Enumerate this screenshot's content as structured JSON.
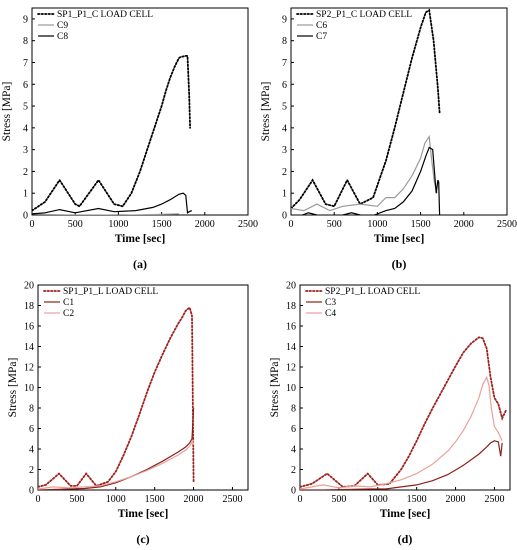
{
  "chart_data": [
    {
      "panel": "(a)",
      "type": "line",
      "xlabel": "Time [sec]",
      "ylabel": "Stress [MPa]",
      "xlim": [
        0,
        2500
      ],
      "ylim": [
        0,
        9.5
      ],
      "xticks": [
        0,
        500,
        1000,
        1500,
        2000,
        2500
      ],
      "yticks": [
        0,
        1,
        2,
        3,
        4,
        5,
        6,
        7,
        8,
        9
      ],
      "legend_position": "top-left",
      "series": [
        {
          "name": "SP1_P1_C LOAD CELL",
          "color": "#000000",
          "style": "dotted",
          "x": [
            0,
            150,
            320,
            500,
            550,
            770,
            950,
            1050,
            1150,
            1250,
            1350,
            1450,
            1500,
            1550,
            1600,
            1650,
            1700,
            1720,
            1780,
            1800,
            1820,
            1830
          ],
          "y": [
            0.2,
            0.6,
            1.6,
            0.5,
            0.4,
            1.6,
            0.5,
            0.4,
            1.0,
            2.0,
            3.2,
            4.4,
            5.0,
            5.7,
            6.3,
            6.8,
            7.2,
            7.25,
            7.3,
            7.3,
            5.5,
            4.0
          ]
        },
        {
          "name": "C9",
          "color": "#9a9a9a",
          "style": "solid",
          "x": [
            0,
            200,
            400,
            800,
            1000,
            1200,
            1500,
            1700
          ],
          "y": [
            0.05,
            0.02,
            0.0,
            0.0,
            -0.02,
            0.0,
            0.03,
            0.05
          ]
        },
        {
          "name": "C8",
          "color": "#000000",
          "style": "solid",
          "x": [
            0,
            150,
            320,
            500,
            770,
            950,
            1200,
            1400,
            1500,
            1600,
            1700,
            1750,
            1780,
            1800,
            1820,
            1850
          ],
          "y": [
            0.05,
            0.1,
            0.25,
            0.1,
            0.3,
            0.15,
            0.2,
            0.35,
            0.5,
            0.7,
            0.95,
            1.0,
            0.9,
            0.1,
            0.15,
            0.2
          ]
        }
      ]
    },
    {
      "panel": "(b)",
      "type": "line",
      "xlabel": "Time [sec]",
      "ylabel": "Stress [MPa]",
      "xlim": [
        0,
        2500
      ],
      "ylim": [
        0,
        9.5
      ],
      "xticks": [
        0,
        500,
        1000,
        1500,
        2000,
        2500
      ],
      "yticks": [
        0,
        1,
        2,
        3,
        4,
        5,
        6,
        7,
        8,
        9
      ],
      "legend_position": "top-left",
      "series": [
        {
          "name": "SP2_P1_C LOAD CELL",
          "color": "#000000",
          "style": "dotted",
          "x": [
            0,
            100,
            250,
            400,
            500,
            650,
            800,
            950,
            1100,
            1200,
            1300,
            1400,
            1500,
            1560,
            1600,
            1650,
            1700,
            1720
          ],
          "y": [
            0.3,
            0.7,
            1.6,
            0.5,
            0.4,
            1.6,
            0.5,
            0.8,
            2.5,
            4.0,
            5.6,
            7.2,
            8.6,
            9.3,
            9.4,
            8.0,
            5.8,
            4.7
          ]
        },
        {
          "name": "C6",
          "color": "#9a9a9a",
          "style": "solid",
          "x": [
            0,
            150,
            300,
            450,
            600,
            800,
            1000,
            1100,
            1200,
            1300,
            1400,
            1500,
            1550,
            1600,
            1620,
            1660,
            1690
          ],
          "y": [
            0.3,
            0.2,
            0.5,
            0.2,
            0.4,
            0.5,
            0.4,
            0.8,
            0.8,
            1.2,
            1.8,
            2.6,
            3.3,
            3.6,
            2.8,
            1.5,
            1.0
          ]
        },
        {
          "name": "C7",
          "color": "#000000",
          "style": "solid",
          "x": [
            0,
            200,
            300,
            450,
            600,
            700,
            900,
            1100,
            1200,
            1300,
            1400,
            1500,
            1560,
            1600,
            1640,
            1680,
            1700,
            1710,
            1720
          ],
          "y": [
            -0.2,
            0.1,
            0.0,
            -0.1,
            0.0,
            0.1,
            -0.1,
            0.2,
            0.3,
            0.6,
            1.1,
            2.0,
            2.7,
            3.1,
            3.0,
            1.0,
            1.6,
            1.5,
            0.0
          ]
        }
      ]
    },
    {
      "panel": "(c)",
      "type": "line",
      "xlabel": "Time [sec]",
      "ylabel": "Stress [MPa]",
      "xlim": [
        0,
        2700
      ],
      "ylim": [
        0,
        20
      ],
      "xticks": [
        0,
        500,
        1000,
        1500,
        2000,
        2500
      ],
      "yticks": [
        0,
        2,
        4,
        6,
        8,
        10,
        12,
        14,
        16,
        18,
        20
      ],
      "legend_position": "top-left",
      "series": [
        {
          "name": "SP1_P1_L LOAD CELL",
          "color": "#a0201b",
          "style": "dotted",
          "x": [
            0,
            100,
            270,
            420,
            500,
            620,
            750,
            900,
            1000,
            1100,
            1200,
            1300,
            1400,
            1500,
            1600,
            1700,
            1750,
            1800,
            1850,
            1900,
            1950,
            1980,
            2000
          ],
          "y": [
            0.3,
            0.5,
            1.6,
            0.4,
            0.4,
            1.6,
            0.4,
            0.8,
            1.8,
            3.4,
            5.2,
            7.3,
            9.5,
            11.5,
            13.2,
            14.8,
            15.5,
            16.2,
            16.8,
            17.5,
            17.8,
            17.0,
            0.8
          ]
        },
        {
          "name": "C1",
          "color": "#8b2218",
          "style": "solid",
          "x": [
            0,
            200,
            400,
            600,
            800,
            1000,
            1200,
            1400,
            1600,
            1800,
            1900,
            1950,
            1980,
            1990,
            2000
          ],
          "y": [
            0.0,
            0.05,
            0.1,
            0.15,
            0.3,
            0.7,
            1.3,
            2.0,
            2.8,
            3.7,
            4.2,
            4.6,
            5.0,
            6.5,
            8.0
          ]
        },
        {
          "name": "C2",
          "color": "#e8a19b",
          "style": "solid",
          "x": [
            0,
            200,
            400,
            600,
            800,
            1000,
            1200,
            1400,
            1600,
            1800,
            1900,
            1950,
            1990,
            2000
          ],
          "y": [
            0.1,
            0.3,
            0.2,
            0.3,
            0.4,
            0.8,
            1.3,
            1.9,
            2.6,
            3.4,
            3.9,
            4.3,
            4.8,
            4.4
          ]
        }
      ]
    },
    {
      "panel": "(d)",
      "type": "line",
      "xlabel": "Time [sec]",
      "ylabel": "Stress [MPa]",
      "xlim": [
        0,
        2700
      ],
      "ylim": [
        0,
        20
      ],
      "xticks": [
        0,
        500,
        1000,
        1500,
        2000,
        2500
      ],
      "yticks": [
        0,
        2,
        4,
        6,
        8,
        10,
        12,
        14,
        16,
        18,
        20
      ],
      "legend_position": "top-left",
      "series": [
        {
          "name": "SP2_P1_L LOAD CELL",
          "color": "#a0201b",
          "style": "dotted",
          "x": [
            0,
            150,
            350,
            550,
            700,
            870,
            1000,
            1150,
            1300,
            1400,
            1500,
            1600,
            1700,
            1800,
            1900,
            2000,
            2100,
            2200,
            2300,
            2350,
            2400,
            2450,
            2500,
            2550,
            2600,
            2650
          ],
          "y": [
            0.3,
            0.6,
            1.6,
            0.3,
            0.4,
            1.6,
            0.5,
            0.6,
            2.0,
            3.3,
            4.8,
            6.4,
            7.9,
            9.3,
            10.7,
            12.1,
            13.4,
            14.3,
            14.9,
            14.8,
            13.8,
            11.0,
            9.0,
            8.4,
            7.0,
            7.8
          ]
        },
        {
          "name": "C3",
          "color": "#8b2218",
          "style": "solid",
          "x": [
            0,
            300,
            600,
            900,
            1100,
            1300,
            1500,
            1700,
            1900,
            2100,
            2300,
            2400,
            2450,
            2500,
            2550,
            2580,
            2600
          ],
          "y": [
            0.0,
            0.0,
            0.05,
            0.1,
            0.1,
            0.3,
            0.5,
            0.9,
            1.5,
            2.4,
            3.5,
            4.2,
            4.6,
            4.8,
            4.7,
            3.3,
            4.6
          ]
        },
        {
          "name": "C4",
          "color": "#e8a19b",
          "style": "solid",
          "x": [
            0,
            300,
            500,
            700,
            900,
            1100,
            1300,
            1500,
            1700,
            1900,
            2000,
            2100,
            2200,
            2300,
            2350,
            2400,
            2430,
            2460,
            2500,
            2550,
            2600
          ],
          "y": [
            0.1,
            0.5,
            0.2,
            0.4,
            0.3,
            0.6,
            1.0,
            1.6,
            2.5,
            3.8,
            4.7,
            5.8,
            7.2,
            9.0,
            10.3,
            11.0,
            10.2,
            8.0,
            6.2,
            5.6,
            4.8
          ]
        }
      ]
    }
  ]
}
